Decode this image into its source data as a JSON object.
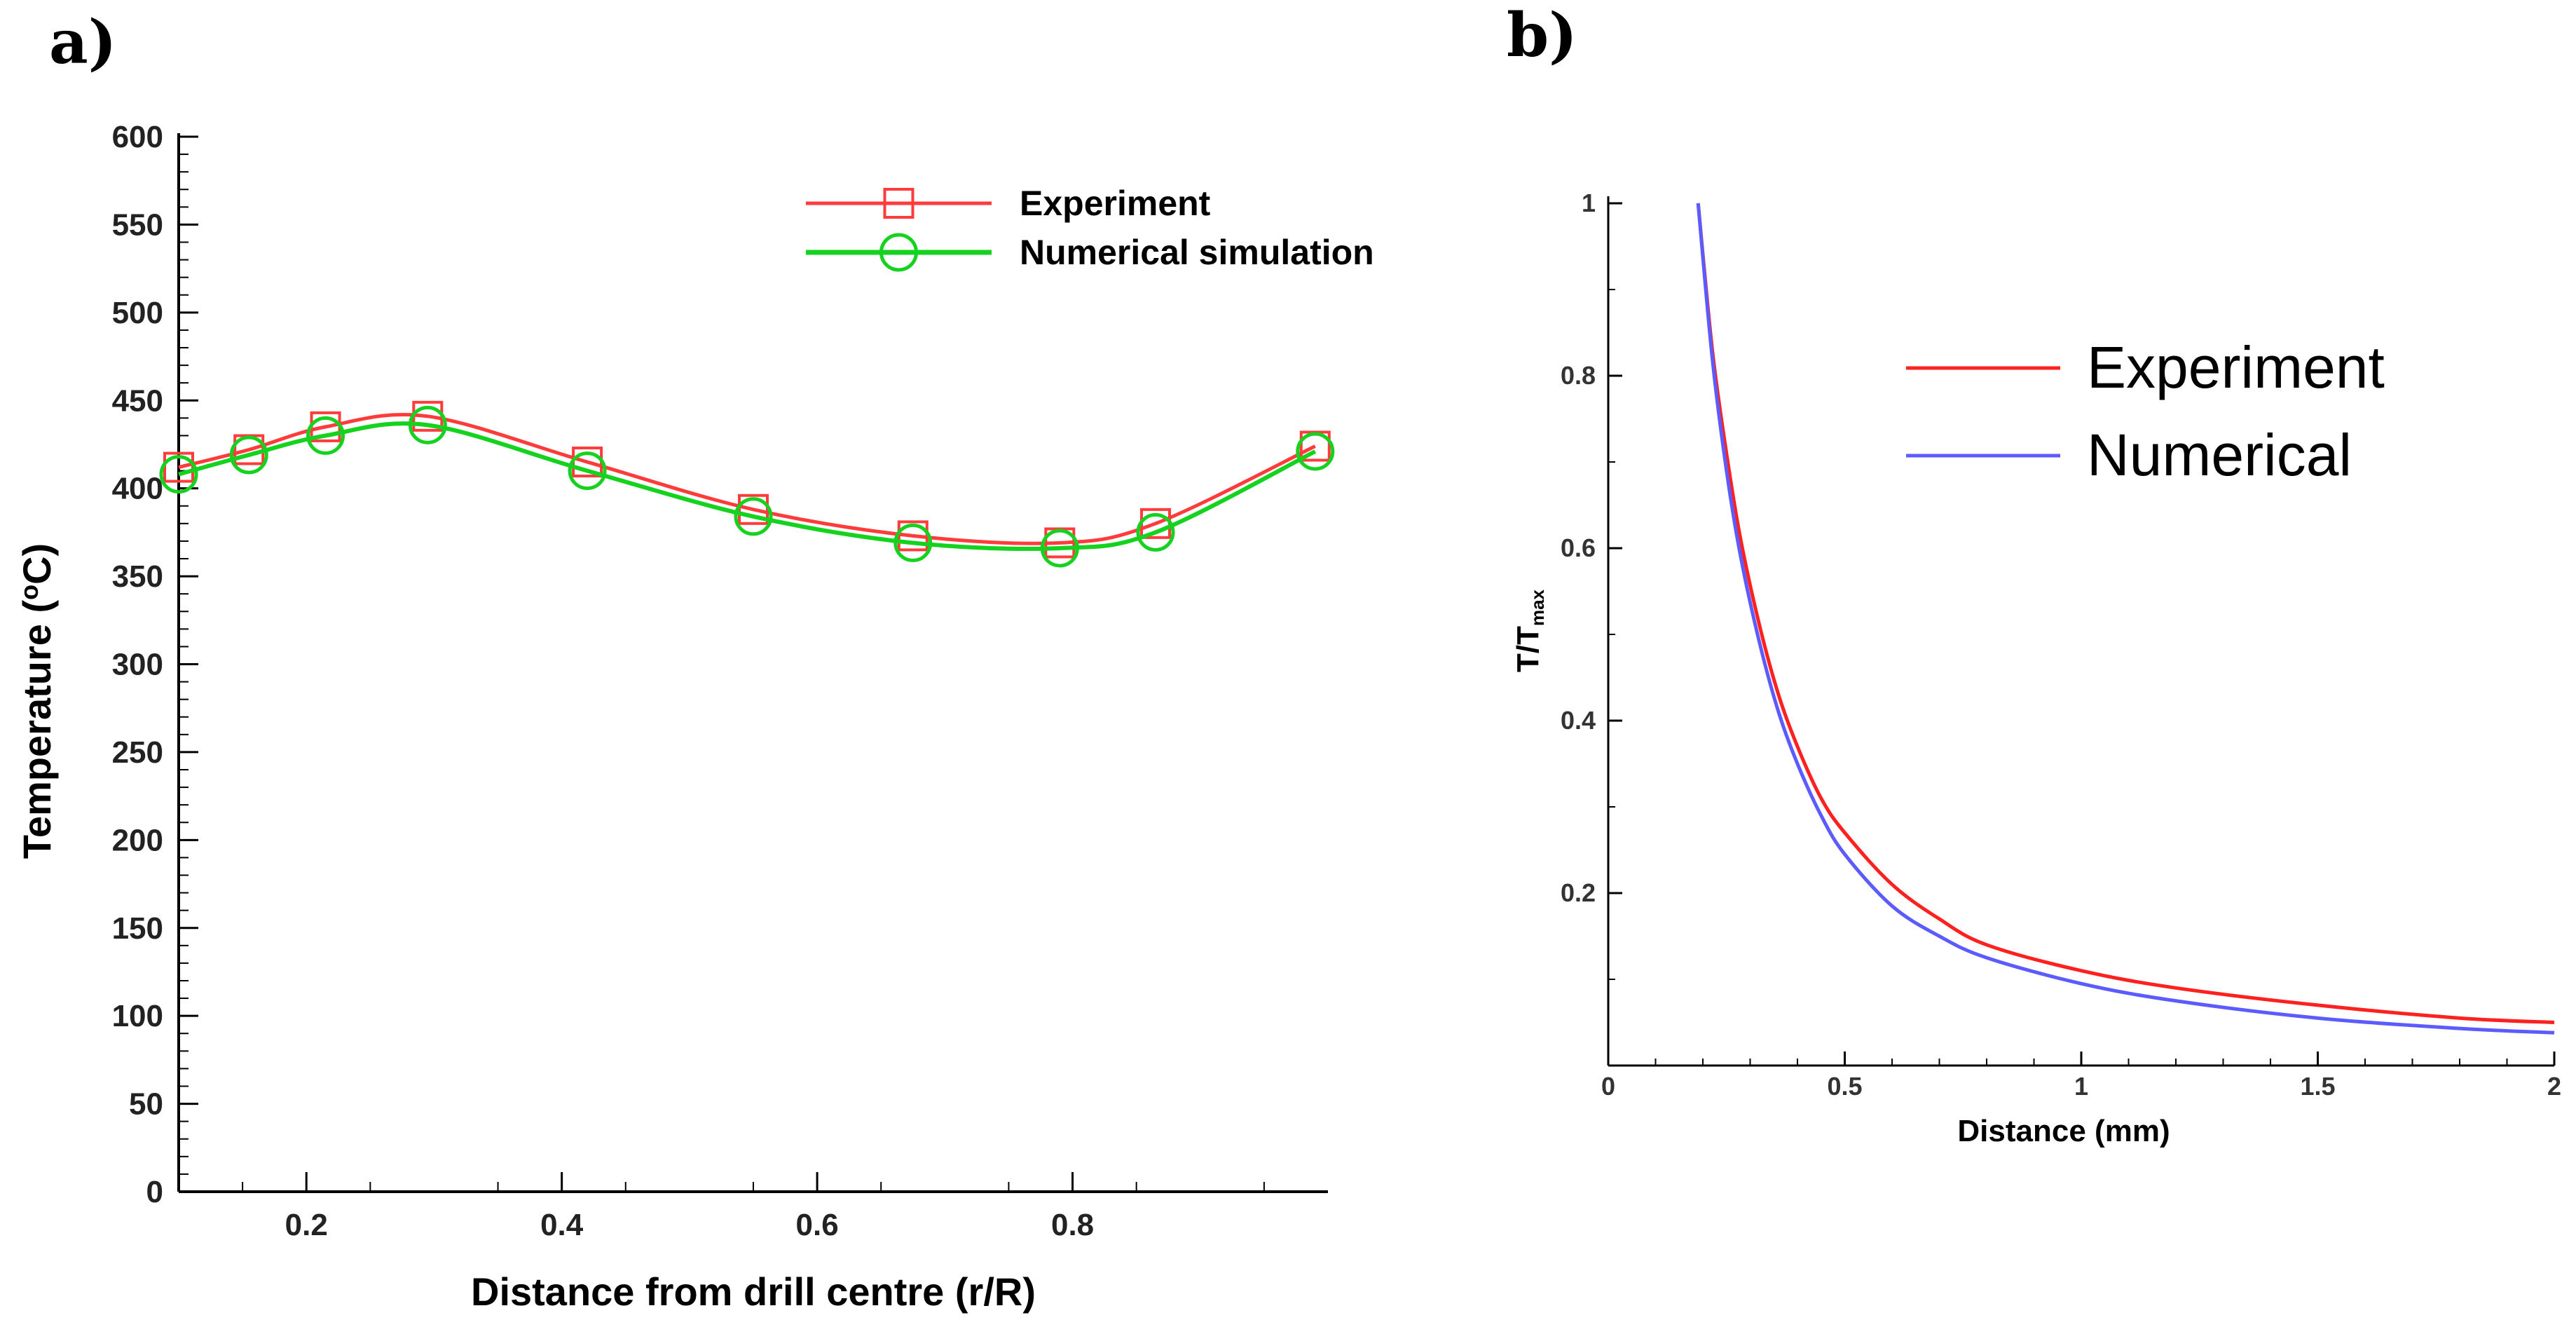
{
  "chart_data": [
    {
      "panel_label": "a)",
      "type": "line",
      "title": "",
      "xlabel": "Distance from drill centre (r/R)",
      "ylabel_main": "Temperature (",
      "ylabel_sup": "o",
      "ylabel_end": "C)",
      "xlim": [
        0.1,
        1.0
      ],
      "ylim": [
        0,
        600
      ],
      "xticks": [
        0.2,
        0.4,
        0.6,
        0.8
      ],
      "xtick_labels": [
        "0.2",
        "0.4",
        "0.6",
        "0.8"
      ],
      "yticks": [
        0,
        50,
        100,
        150,
        200,
        250,
        300,
        350,
        400,
        450,
        500,
        550,
        600
      ],
      "ytick_labels": [
        "0",
        "50",
        "100",
        "150",
        "200",
        "250",
        "300",
        "350",
        "400",
        "450",
        "500",
        "550",
        "600"
      ],
      "legend_position": "top-right",
      "series": [
        {
          "name": "Experiment",
          "color": "#ff3b3b",
          "marker": "square",
          "x": [
            0.1,
            0.155,
            0.215,
            0.295,
            0.42,
            0.55,
            0.675,
            0.79,
            0.865,
            0.99
          ],
          "values": [
            412,
            422,
            435,
            441,
            415,
            388,
            373,
            369,
            380,
            424
          ]
        },
        {
          "name": "Numerical simulation",
          "color": "#15d21f",
          "marker": "circle",
          "x": [
            0.1,
            0.155,
            0.215,
            0.295,
            0.42,
            0.55,
            0.675,
            0.79,
            0.865,
            0.99
          ],
          "values": [
            408,
            419,
            430,
            436,
            410,
            384,
            369,
            366,
            375,
            421
          ]
        }
      ]
    },
    {
      "panel_label": "b)",
      "type": "line",
      "title": "",
      "xlabel": "Distance (mm)",
      "ylabel_main": "T/T",
      "ylabel_sub": "max",
      "xlim": [
        0,
        2
      ],
      "ylim": [
        0,
        1
      ],
      "xticks": [
        0,
        0.5,
        1,
        1.5,
        2
      ],
      "xtick_labels": [
        "0",
        "0.5",
        "1",
        "1.5",
        "2"
      ],
      "yticks": [
        0.2,
        0.4,
        0.6,
        0.8,
        1
      ],
      "ytick_labels": [
        "0.2",
        "0.4",
        "0.6",
        "0.8",
        "1"
      ],
      "legend_position": "top-right",
      "series": [
        {
          "name": "Experiment",
          "color": "#ff2020",
          "x": [
            0.19,
            0.22,
            0.25,
            0.28,
            0.32,
            0.36,
            0.4,
            0.45,
            0.5,
            0.6,
            0.7,
            0.8,
            1.0,
            1.2,
            1.5,
            1.8,
            2.0
          ],
          "values": [
            1.0,
            0.83,
            0.71,
            0.61,
            0.51,
            0.43,
            0.37,
            0.31,
            0.27,
            0.21,
            0.17,
            0.14,
            0.11,
            0.09,
            0.07,
            0.055,
            0.05
          ]
        },
        {
          "name": "Numerical",
          "color": "#5b5bff",
          "x": [
            0.19,
            0.22,
            0.25,
            0.28,
            0.32,
            0.36,
            0.4,
            0.45,
            0.5,
            0.6,
            0.7,
            0.8,
            1.0,
            1.2,
            1.5,
            1.8,
            2.0
          ],
          "values": [
            1.0,
            0.82,
            0.69,
            0.59,
            0.49,
            0.41,
            0.35,
            0.29,
            0.245,
            0.185,
            0.15,
            0.125,
            0.095,
            0.075,
            0.055,
            0.043,
            0.038
          ]
        }
      ]
    }
  ]
}
